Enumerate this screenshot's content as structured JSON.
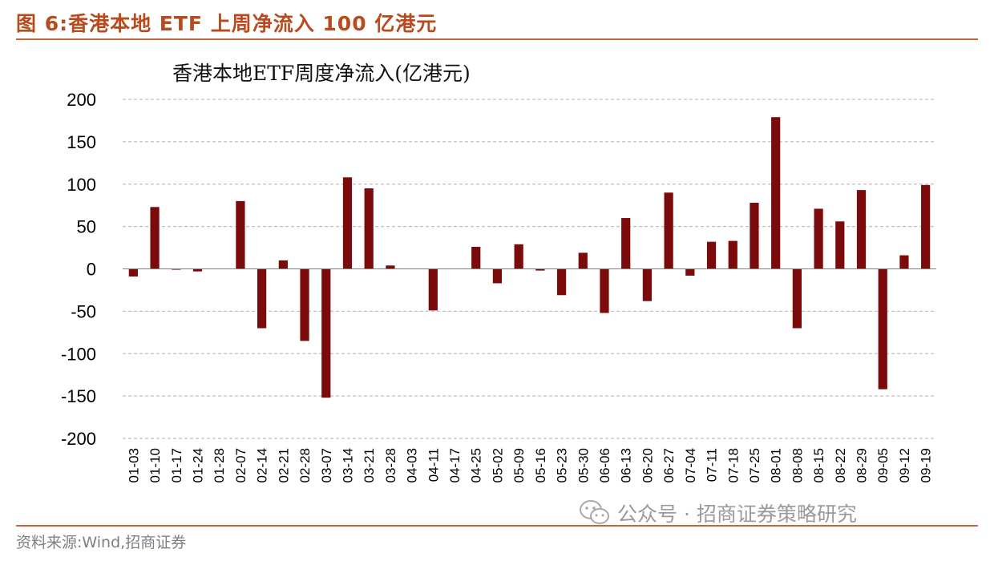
{
  "figure": {
    "title": "图 6:香港本地 ETF 上周净流入 100 亿港元",
    "source": "资料来源:Wind,招商证券",
    "watermark": "公众号 · 招商证券策略研究"
  },
  "colors": {
    "bar": "#7b0a0a",
    "accent": "#b84a1e",
    "grid": "#bfbfbf"
  },
  "chart_data": {
    "type": "bar",
    "title": "香港本地ETF周度净流入(亿港元)",
    "xlabel": "",
    "ylabel": "",
    "ylim": [
      -200,
      200
    ],
    "yticks": [
      200,
      150,
      100,
      50,
      0,
      -50,
      -100,
      -150,
      -200
    ],
    "grid": true,
    "categories": [
      "01-03",
      "01-10",
      "01-17",
      "01-24",
      "01-28",
      "02-07",
      "02-14",
      "02-21",
      "02-28",
      "03-07",
      "03-14",
      "03-21",
      "03-28",
      "04-03",
      "04-11",
      "04-17",
      "04-25",
      "05-02",
      "05-09",
      "05-16",
      "05-23",
      "05-30",
      "06-06",
      "06-13",
      "06-20",
      "06-27",
      "07-04",
      "07-11",
      "07-18",
      "07-25",
      "08-01",
      "08-08",
      "08-15",
      "08-22",
      "08-29",
      "09-05",
      "09-12",
      "09-19"
    ],
    "values": [
      -9,
      73,
      -1,
      -3,
      0,
      80,
      -70,
      10,
      -85,
      -152,
      108,
      95,
      4,
      0,
      -49,
      0,
      26,
      -17,
      29,
      -2,
      -31,
      19,
      -52,
      60,
      -38,
      90,
      -8,
      32,
      33,
      78,
      179,
      -70,
      71,
      56,
      93,
      -142,
      16,
      99
    ]
  }
}
